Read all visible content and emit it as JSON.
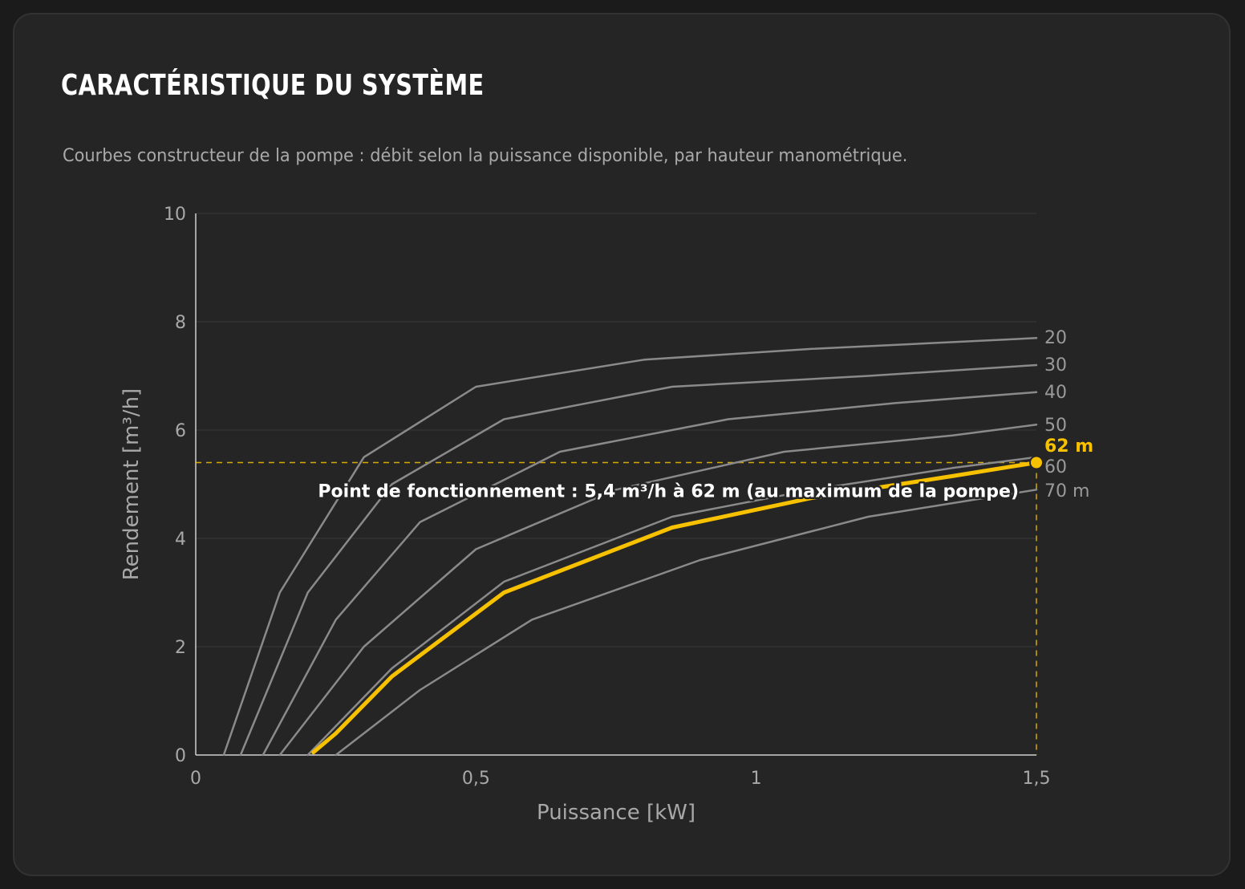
{
  "card": {
    "title": "Caractéristique du système",
    "subtitle": "Courbes constructeur de la pompe : débit selon la puissance disponible, par hauteur manométrique."
  },
  "chart_data": {
    "type": "line",
    "xlabel": "Puissance [kW]",
    "ylabel": "Rendement [m³/h]",
    "xlim": [
      0,
      1.5
    ],
    "ylim": [
      0,
      10
    ],
    "x_ticks": [
      0,
      0.5,
      1,
      1.5
    ],
    "x_tick_labels": [
      "0",
      "0,5",
      "1",
      "1,5"
    ],
    "y_ticks": [
      0,
      2,
      4,
      6,
      8,
      10
    ],
    "y_tick_labels": [
      "0",
      "2",
      "4",
      "6",
      "8",
      "10"
    ],
    "grid": "horizontal",
    "series": [
      {
        "name": "20",
        "color": "#8a8a8a",
        "x": [
          0.05,
          0.15,
          0.3,
          0.5,
          0.8,
          1.1,
          1.5
        ],
        "y": [
          0,
          3.0,
          5.5,
          6.8,
          7.3,
          7.5,
          7.7
        ]
      },
      {
        "name": "30",
        "color": "#8a8a8a",
        "x": [
          0.08,
          0.2,
          0.35,
          0.55,
          0.85,
          1.2,
          1.5
        ],
        "y": [
          0,
          3.0,
          5.0,
          6.2,
          6.8,
          7.0,
          7.2
        ]
      },
      {
        "name": "40",
        "color": "#8a8a8a",
        "x": [
          0.12,
          0.25,
          0.4,
          0.65,
          0.95,
          1.25,
          1.5
        ],
        "y": [
          0,
          2.5,
          4.3,
          5.6,
          6.2,
          6.5,
          6.7
        ]
      },
      {
        "name": "50",
        "color": "#8a8a8a",
        "x": [
          0.15,
          0.3,
          0.5,
          0.75,
          1.05,
          1.35,
          1.5
        ],
        "y": [
          0,
          2.0,
          3.8,
          4.9,
          5.6,
          5.9,
          6.1
        ]
      },
      {
        "name": "60",
        "color": "#8a8a8a",
        "x": [
          0.2,
          0.35,
          0.55,
          0.85,
          1.1,
          1.35,
          1.5
        ],
        "y": [
          0,
          1.6,
          3.2,
          4.4,
          4.9,
          5.3,
          5.5
        ]
      },
      {
        "name": "70 m",
        "color": "#8a8a8a",
        "x": [
          0.25,
          0.4,
          0.6,
          0.9,
          1.2,
          1.5
        ],
        "y": [
          0,
          1.2,
          2.5,
          3.6,
          4.4,
          4.9
        ]
      },
      {
        "name": "62 m",
        "color": "#f7c100",
        "highlight": true,
        "x": [
          0.21,
          0.25,
          0.35,
          0.55,
          0.85,
          1.1,
          1.35,
          1.5
        ],
        "y": [
          0.05,
          0.4,
          1.45,
          3.0,
          4.2,
          4.75,
          5.15,
          5.4
        ]
      }
    ],
    "operating_point": {
      "x": 1.5,
      "y": 5.4,
      "color": "#f7c100",
      "label": "Point de fonctionnement : 5,4 m³/h à 62 m (au maximum de la pompe)"
    }
  }
}
